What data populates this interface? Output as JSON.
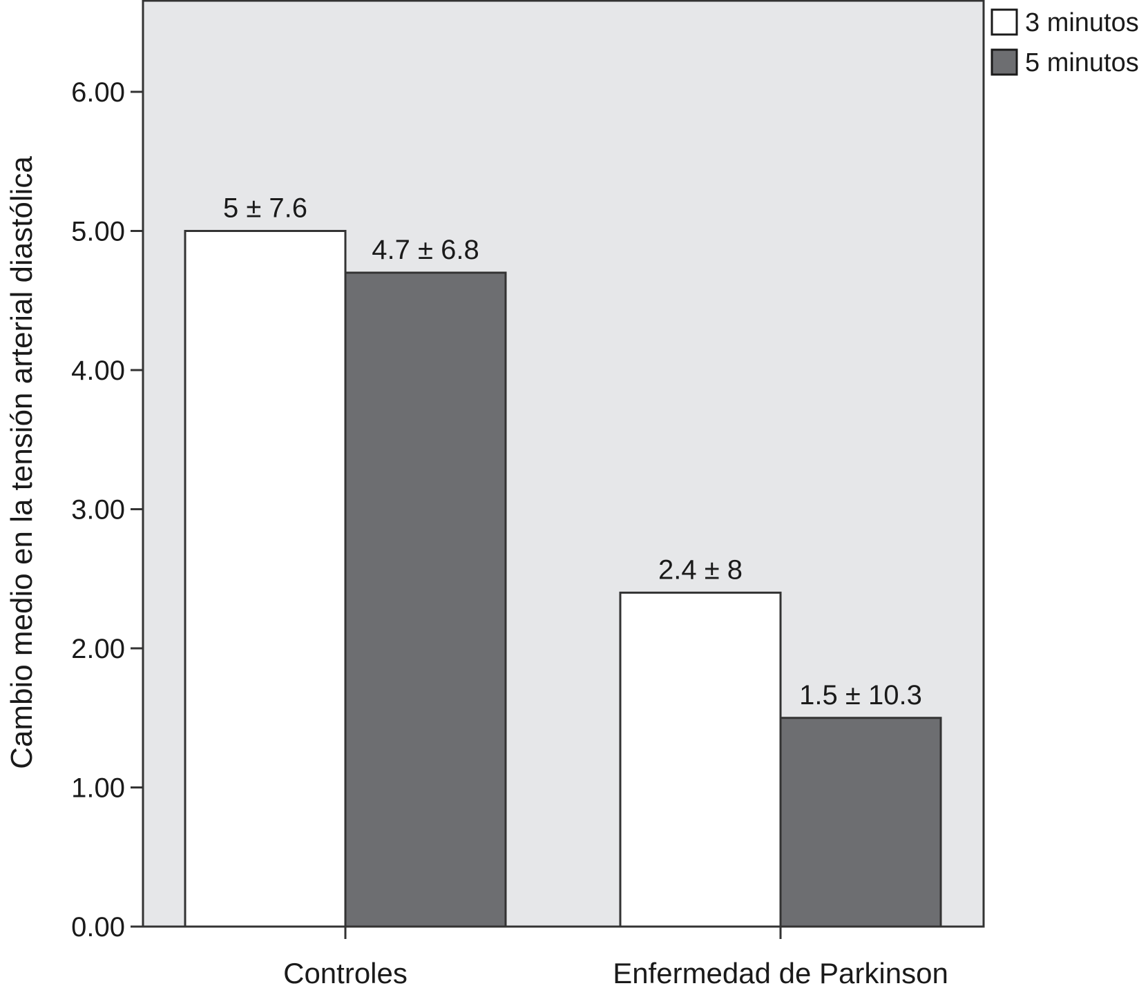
{
  "chart_data": {
    "type": "bar",
    "title": "",
    "xlabel": "",
    "ylabel": "Cambio medio en la tensión arterial diastólica",
    "categories": [
      "Controles",
      "Enfermedad de Parkinson"
    ],
    "series": [
      {
        "name": "3 minutos",
        "values": [
          5.0,
          2.4
        ],
        "labels": [
          "5 ± 7.6",
          "2.4 ± 8"
        ],
        "color": "#ffffff"
      },
      {
        "name": "5 minutos",
        "values": [
          4.7,
          1.5
        ],
        "labels": [
          "4.7 ± 6.8",
          "1.5 ± 10.3"
        ],
        "color": "#6d6e71"
      }
    ],
    "ylim": [
      0,
      6.5
    ],
    "yticks": [
      0,
      1,
      2,
      3,
      4,
      5,
      6
    ],
    "ytick_labels": [
      "0.00",
      "1.00",
      "2.00",
      "3.00",
      "4.00",
      "5.00",
      "6.00"
    ],
    "legend_position": "top-right",
    "grid": false,
    "plot_background": "#e6e7e9",
    "axis_color": "#333333"
  }
}
